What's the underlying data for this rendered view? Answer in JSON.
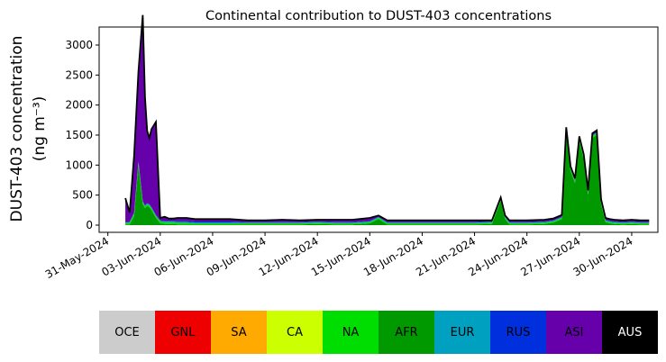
{
  "chart_data": {
    "type": "area",
    "title": "Continental contribution to DUST-403 concentrations",
    "ylabel_line1": "DUST-403 concentration",
    "ylabel_line2": "(ng m⁻³)",
    "xlabel": "",
    "x_ticks": [
      "31-May-2024",
      "03-Jun-2024",
      "06-Jun-2024",
      "09-Jun-2024",
      "12-Jun-2024",
      "15-Jun-2024",
      "18-Jun-2024",
      "21-Jun-2024",
      "24-Jun-2024",
      "27-Jun-2024",
      "30-Jun-2024"
    ],
    "y_ticks": [
      0,
      500,
      1000,
      1500,
      2000,
      2500,
      3000
    ],
    "xlim": [
      "2024-05-30T12:00",
      "2024-07-01T12:00"
    ],
    "ylim": [
      -120,
      3300
    ],
    "stacking_order": [
      "AFR",
      "NA",
      "EUR",
      "RUS",
      "ASI"
    ],
    "x": [
      "2024-06-01T00:00",
      "2024-06-01T06:00",
      "2024-06-01T12:00",
      "2024-06-01T18:00",
      "2024-06-02T00:00",
      "2024-06-02T03:00",
      "2024-06-02T06:00",
      "2024-06-02T09:00",
      "2024-06-02T12:00",
      "2024-06-02T18:00",
      "2024-06-03T00:00",
      "2024-06-03T06:00",
      "2024-06-03T12:00",
      "2024-06-03T18:00",
      "2024-06-04T00:00",
      "2024-06-04T12:00",
      "2024-06-05T00:00",
      "2024-06-05T12:00",
      "2024-06-06T00:00",
      "2024-06-06T12:00",
      "2024-06-07T00:00",
      "2024-06-08T00:00",
      "2024-06-09T00:00",
      "2024-06-10T00:00",
      "2024-06-11T00:00",
      "2024-06-12T00:00",
      "2024-06-13T00:00",
      "2024-06-14T00:00",
      "2024-06-15T00:00",
      "2024-06-15T12:00",
      "2024-06-16T00:00",
      "2024-06-17T00:00",
      "2024-06-18T00:00",
      "2024-06-19T00:00",
      "2024-06-20T00:00",
      "2024-06-21T00:00",
      "2024-06-22T00:00",
      "2024-06-22T12:00",
      "2024-06-22T18:00",
      "2024-06-23T00:00",
      "2024-06-23T12:00",
      "2024-06-24T00:00",
      "2024-06-25T00:00",
      "2024-06-25T12:00",
      "2024-06-26T00:00",
      "2024-06-26T06:00",
      "2024-06-26T12:00",
      "2024-06-26T18:00",
      "2024-06-27T00:00",
      "2024-06-27T06:00",
      "2024-06-27T12:00",
      "2024-06-27T18:00",
      "2024-06-28T00:00",
      "2024-06-28T06:00",
      "2024-06-28T12:00",
      "2024-06-28T18:00",
      "2024-06-29T00:00",
      "2024-06-29T12:00",
      "2024-06-30T00:00",
      "2024-06-30T12:00",
      "2024-07-01T00:00"
    ],
    "series": [
      {
        "name": "AFR",
        "color": "#009900",
        "values": [
          10,
          10,
          150,
          1000,
          350,
          280,
          320,
          300,
          250,
          120,
          30,
          20,
          20,
          20,
          10,
          10,
          10,
          10,
          10,
          10,
          10,
          10,
          10,
          10,
          10,
          20,
          10,
          10,
          30,
          100,
          10,
          10,
          10,
          10,
          10,
          10,
          20,
          400,
          100,
          10,
          10,
          10,
          20,
          40,
          100,
          1550,
          900,
          700,
          1400,
          1100,
          500,
          1450,
          1500,
          350,
          50,
          30,
          20,
          10,
          20,
          10,
          10
        ]
      },
      {
        "name": "NA",
        "color": "#00dd00",
        "values": [
          20,
          30,
          40,
          40,
          30,
          30,
          30,
          30,
          30,
          30,
          30,
          30,
          30,
          30,
          30,
          30,
          20,
          20,
          20,
          20,
          20,
          20,
          20,
          20,
          20,
          20,
          20,
          20,
          20,
          20,
          20,
          20,
          20,
          20,
          20,
          20,
          20,
          20,
          20,
          20,
          20,
          20,
          20,
          20,
          20,
          30,
          30,
          30,
          30,
          30,
          30,
          30,
          30,
          30,
          20,
          20,
          20,
          20,
          20,
          20,
          20
        ]
      },
      {
        "name": "EUR",
        "color": "#00a0c0",
        "values": [
          10,
          10,
          10,
          10,
          10,
          10,
          10,
          10,
          10,
          10,
          10,
          10,
          10,
          10,
          10,
          10,
          10,
          10,
          10,
          10,
          10,
          10,
          10,
          10,
          10,
          10,
          10,
          10,
          10,
          10,
          10,
          10,
          10,
          10,
          10,
          10,
          10,
          10,
          10,
          10,
          10,
          10,
          10,
          10,
          10,
          10,
          10,
          10,
          10,
          10,
          10,
          10,
          10,
          10,
          10,
          10,
          10,
          10,
          10,
          10,
          10
        ]
      },
      {
        "name": "RUS",
        "color": "#0030dd",
        "values": [
          10,
          10,
          10,
          10,
          10,
          10,
          10,
          10,
          10,
          10,
          10,
          10,
          10,
          10,
          20,
          20,
          20,
          20,
          20,
          20,
          20,
          10,
          10,
          10,
          10,
          10,
          10,
          10,
          10,
          10,
          10,
          10,
          10,
          10,
          10,
          10,
          10,
          10,
          10,
          10,
          10,
          10,
          10,
          10,
          10,
          10,
          10,
          10,
          10,
          10,
          10,
          10,
          10,
          10,
          10,
          10,
          10,
          10,
          10,
          10,
          10
        ]
      },
      {
        "name": "ASI",
        "color": "#6600aa",
        "values": [
          400,
          150,
          950,
          1500,
          3100,
          1800,
          1200,
          1100,
          1300,
          1550,
          40,
          70,
          40,
          40,
          50,
          50,
          40,
          40,
          40,
          40,
          40,
          30,
          30,
          40,
          30,
          30,
          40,
          40,
          50,
          20,
          30,
          30,
          30,
          30,
          30,
          30,
          20,
          20,
          20,
          30,
          30,
          30,
          30,
          30,
          30,
          30,
          30,
          30,
          30,
          30,
          30,
          30,
          30,
          30,
          30,
          30,
          30,
          30,
          30,
          30,
          30
        ]
      }
    ]
  },
  "legend": [
    {
      "label": "OCE",
      "color": "#cccccc",
      "text_color": "#000000"
    },
    {
      "label": "GNL",
      "color": "#ee0000",
      "text_color": "#000000"
    },
    {
      "label": "SA",
      "color": "#ffaa00",
      "text_color": "#000000"
    },
    {
      "label": "CA",
      "color": "#ccff00",
      "text_color": "#000000"
    },
    {
      "label": "NA",
      "color": "#00dd00",
      "text_color": "#000000"
    },
    {
      "label": "AFR",
      "color": "#009900",
      "text_color": "#000000"
    },
    {
      "label": "EUR",
      "color": "#00a0c0",
      "text_color": "#000000"
    },
    {
      "label": "RUS",
      "color": "#0030dd",
      "text_color": "#000000"
    },
    {
      "label": "ASI",
      "color": "#6600aa",
      "text_color": "#000000"
    },
    {
      "label": "AUS",
      "color": "#000000",
      "text_color": "#ffffff"
    }
  ]
}
